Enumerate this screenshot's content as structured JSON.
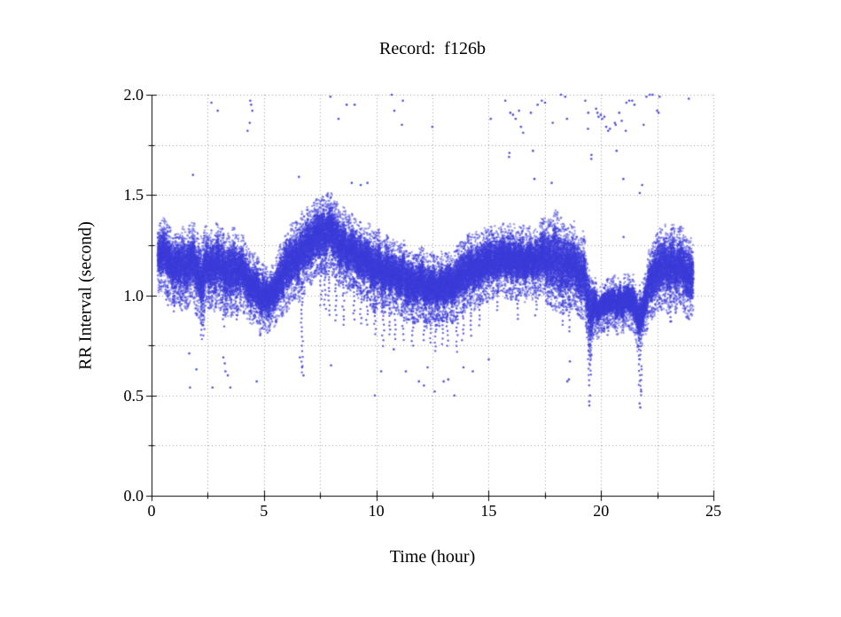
{
  "chart_data": {
    "type": "scatter",
    "title": "Record:  f126b",
    "xlabel": "Time (hour)",
    "ylabel": "RR Interval (second)",
    "xlim": [
      0,
      25
    ],
    "ylim": [
      0,
      2
    ],
    "x_major_ticks": [
      0,
      5,
      10,
      15,
      20,
      25
    ],
    "x_tick_labels": [
      "0",
      "5",
      "10",
      "15",
      "20",
      "25"
    ],
    "x_minor_step": 2.5,
    "y_major_ticks": [
      0,
      0.5,
      1,
      1.5,
      2
    ],
    "y_tick_labels": [
      "0.0",
      "0.5",
      "1.0",
      "1.5",
      "2.0"
    ],
    "y_minor_step": 0.25,
    "grid": "dotted gridlines at every minor tick; top and right frame dotted",
    "legend": "none",
    "point_color": "#3c3cd9",
    "grid_color": "#9e9e9e",
    "axis_color": "#000000",
    "series_name": "RR intervals",
    "t_start": 0.28,
    "t_end": 24.1,
    "points_per_hour": 2200,
    "band_envelope": [
      [
        0.28,
        1.05,
        1.28
      ],
      [
        0.45,
        1.07,
        1.32
      ],
      [
        0.6,
        1.08,
        1.33
      ],
      [
        0.9,
        1.02,
        1.28
      ],
      [
        1.2,
        1.05,
        1.3
      ],
      [
        1.5,
        1.0,
        1.28
      ],
      [
        1.8,
        1.02,
        1.3
      ],
      [
        2.1,
        0.95,
        1.26
      ],
      [
        2.25,
        0.88,
        1.22
      ],
      [
        2.4,
        1.0,
        1.28
      ],
      [
        2.7,
        1.02,
        1.3
      ],
      [
        3.0,
        1.0,
        1.3
      ],
      [
        3.3,
        0.98,
        1.26
      ],
      [
        3.6,
        0.95,
        1.28
      ],
      [
        3.9,
        1.0,
        1.26
      ],
      [
        4.2,
        0.98,
        1.22
      ],
      [
        4.5,
        0.95,
        1.18
      ],
      [
        4.8,
        0.9,
        1.12
      ],
      [
        5.1,
        0.87,
        1.08
      ],
      [
        5.4,
        0.9,
        1.1
      ],
      [
        5.7,
        0.95,
        1.18
      ],
      [
        6.0,
        1.0,
        1.28
      ],
      [
        6.3,
        1.05,
        1.32
      ],
      [
        6.6,
        1.06,
        1.34
      ],
      [
        6.9,
        1.1,
        1.37
      ],
      [
        7.2,
        1.13,
        1.4
      ],
      [
        7.5,
        1.16,
        1.43
      ],
      [
        7.8,
        1.18,
        1.44
      ],
      [
        8.1,
        1.17,
        1.43
      ],
      [
        8.4,
        1.13,
        1.4
      ],
      [
        8.7,
        1.1,
        1.36
      ],
      [
        9.0,
        1.08,
        1.33
      ],
      [
        9.3,
        1.05,
        1.3
      ],
      [
        9.6,
        1.03,
        1.28
      ],
      [
        9.9,
        1.0,
        1.28
      ],
      [
        10.2,
        1.0,
        1.25
      ],
      [
        10.5,
        0.98,
        1.24
      ],
      [
        10.8,
        1.0,
        1.22
      ],
      [
        11.1,
        0.98,
        1.22
      ],
      [
        11.4,
        0.95,
        1.2
      ],
      [
        11.7,
        0.95,
        1.18
      ],
      [
        12.0,
        0.94,
        1.18
      ],
      [
        12.3,
        0.92,
        1.16
      ],
      [
        12.6,
        0.92,
        1.15
      ],
      [
        12.9,
        0.92,
        1.15
      ],
      [
        13.2,
        0.93,
        1.16
      ],
      [
        13.5,
        0.95,
        1.18
      ],
      [
        13.8,
        0.98,
        1.22
      ],
      [
        14.1,
        1.0,
        1.25
      ],
      [
        14.4,
        1.02,
        1.27
      ],
      [
        14.7,
        1.04,
        1.28
      ],
      [
        15.0,
        1.05,
        1.3
      ],
      [
        15.3,
        1.07,
        1.3
      ],
      [
        15.6,
        1.08,
        1.3
      ],
      [
        15.9,
        1.06,
        1.29
      ],
      [
        16.2,
        1.05,
        1.28
      ],
      [
        16.5,
        1.05,
        1.28
      ],
      [
        16.8,
        1.07,
        1.3
      ],
      [
        17.1,
        1.08,
        1.3
      ],
      [
        17.4,
        1.06,
        1.32
      ],
      [
        17.7,
        1.02,
        1.33
      ],
      [
        18.0,
        0.96,
        1.35
      ],
      [
        18.3,
        1.0,
        1.34
      ],
      [
        18.6,
        1.0,
        1.32
      ],
      [
        18.9,
        1.0,
        1.3
      ],
      [
        19.2,
        0.96,
        1.25
      ],
      [
        19.4,
        0.88,
        1.15
      ],
      [
        19.55,
        0.72,
        1.05
      ],
      [
        19.7,
        0.86,
        1.02
      ],
      [
        19.9,
        0.88,
        1.0
      ],
      [
        20.2,
        0.88,
        1.01
      ],
      [
        20.5,
        0.88,
        1.02
      ],
      [
        20.8,
        0.9,
        1.04
      ],
      [
        21.1,
        0.9,
        1.05
      ],
      [
        21.4,
        0.88,
        1.04
      ],
      [
        21.65,
        0.8,
        1.0
      ],
      [
        21.8,
        0.78,
        0.98
      ],
      [
        21.95,
        0.88,
        1.08
      ],
      [
        22.1,
        0.92,
        1.14
      ],
      [
        22.3,
        0.95,
        1.2
      ],
      [
        22.5,
        0.98,
        1.26
      ],
      [
        22.8,
        1.0,
        1.28
      ],
      [
        23.1,
        1.0,
        1.28
      ],
      [
        23.4,
        1.0,
        1.27
      ],
      [
        23.7,
        1.0,
        1.28
      ],
      [
        24.0,
        0.96,
        1.25
      ],
      [
        24.1,
        0.98,
        1.22
      ]
    ],
    "down_streaks": [
      [
        0.7,
        1.05,
        0.95
      ],
      [
        1.0,
        1.05,
        0.92
      ],
      [
        1.35,
        1.02,
        0.93
      ],
      [
        2.22,
        1.05,
        0.78
      ],
      [
        2.32,
        1.02,
        0.8
      ],
      [
        3.2,
        1.0,
        0.85
      ],
      [
        3.8,
        1.0,
        0.88
      ],
      [
        4.6,
        1.0,
        0.88
      ],
      [
        5.3,
        1.0,
        0.88
      ],
      [
        6.7,
        1.06,
        0.62
      ],
      [
        7.55,
        1.16,
        0.95
      ],
      [
        7.72,
        1.14,
        0.93
      ],
      [
        7.9,
        1.12,
        0.9
      ],
      [
        8.2,
        1.1,
        0.88
      ],
      [
        8.55,
        1.08,
        0.85
      ],
      [
        9.0,
        1.08,
        0.88
      ],
      [
        9.3,
        1.05,
        0.86
      ],
      [
        9.6,
        1.02,
        0.85
      ],
      [
        9.95,
        0.99,
        0.8
      ],
      [
        10.3,
        0.97,
        0.75
      ],
      [
        10.6,
        0.96,
        0.8
      ],
      [
        10.85,
        0.97,
        0.78
      ],
      [
        11.2,
        0.94,
        0.78
      ],
      [
        11.6,
        0.93,
        0.75
      ],
      [
        12.1,
        0.92,
        0.78
      ],
      [
        12.4,
        0.9,
        0.76
      ],
      [
        12.65,
        0.9,
        0.72
      ],
      [
        12.95,
        0.9,
        0.76
      ],
      [
        13.15,
        0.91,
        0.75
      ],
      [
        13.6,
        0.93,
        0.72
      ],
      [
        13.85,
        0.95,
        0.78
      ],
      [
        14.2,
        0.98,
        0.8
      ],
      [
        14.6,
        1.0,
        0.85
      ],
      [
        15.4,
        1.05,
        0.92
      ],
      [
        16.3,
        1.03,
        0.88
      ],
      [
        17.1,
        1.06,
        0.9
      ],
      [
        18.3,
        1.0,
        0.85
      ],
      [
        18.6,
        0.99,
        0.82
      ],
      [
        19.45,
        1.08,
        0.55
      ],
      [
        19.55,
        1.02,
        0.6
      ],
      [
        20.3,
        0.89,
        0.8
      ],
      [
        21.68,
        0.93,
        0.55
      ],
      [
        21.78,
        0.9,
        0.5
      ],
      [
        23.1,
        1.0,
        0.87
      ]
    ],
    "outliers_high": [
      [
        1.85,
        1.6
      ],
      [
        2.68,
        1.96
      ],
      [
        2.95,
        1.92
      ],
      [
        4.29,
        1.82
      ],
      [
        4.37,
        1.86
      ],
      [
        4.4,
        1.97
      ],
      [
        4.45,
        1.95
      ],
      [
        4.5,
        1.92
      ],
      [
        6.57,
        1.59
      ],
      [
        7.95,
        1.99
      ],
      [
        8.3,
        1.88
      ],
      [
        8.7,
        1.95
      ],
      [
        8.9,
        1.56
      ],
      [
        9.05,
        1.95
      ],
      [
        9.3,
        1.55
      ],
      [
        9.6,
        1.56
      ],
      [
        10.7,
        2.0
      ],
      [
        10.8,
        1.92
      ],
      [
        11.15,
        1.85
      ],
      [
        11.2,
        1.97
      ],
      [
        12.5,
        1.84
      ],
      [
        15.1,
        1.88
      ],
      [
        15.75,
        1.97
      ],
      [
        15.9,
        1.69
      ],
      [
        15.92,
        1.71
      ],
      [
        15.95,
        1.91
      ],
      [
        16.1,
        1.9
      ],
      [
        16.2,
        1.88
      ],
      [
        16.35,
        1.92
      ],
      [
        16.45,
        1.84
      ],
      [
        16.55,
        1.81
      ],
      [
        16.9,
        1.91
      ],
      [
        16.95,
        1.72
      ],
      [
        17.05,
        1.58
      ],
      [
        17.2,
        1.95
      ],
      [
        17.35,
        1.97
      ],
      [
        17.5,
        1.96
      ],
      [
        17.8,
        1.56
      ],
      [
        17.85,
        1.86
      ],
      [
        18.2,
        2.0
      ],
      [
        18.4,
        1.99
      ],
      [
        18.5,
        1.88
      ],
      [
        19.3,
        1.97
      ],
      [
        19.4,
        1.83
      ],
      [
        19.45,
        1.91
      ],
      [
        19.55,
        1.68
      ],
      [
        19.57,
        1.7
      ],
      [
        19.76,
        1.93
      ],
      [
        19.82,
        1.91
      ],
      [
        19.9,
        1.89
      ],
      [
        19.97,
        1.9
      ],
      [
        20.05,
        1.88
      ],
      [
        20.15,
        1.89
      ],
      [
        20.22,
        1.84
      ],
      [
        20.3,
        1.82
      ],
      [
        20.38,
        1.83
      ],
      [
        20.6,
        1.86
      ],
      [
        20.66,
        1.85
      ],
      [
        20.7,
        1.72
      ],
      [
        20.8,
        1.91
      ],
      [
        20.9,
        1.87
      ],
      [
        21.0,
        1.58
      ],
      [
        21.02,
        1.29
      ],
      [
        21.1,
        1.82
      ],
      [
        21.15,
        1.96
      ],
      [
        21.27,
        1.97
      ],
      [
        21.4,
        1.97
      ],
      [
        21.5,
        1.95
      ],
      [
        21.7,
        1.51
      ],
      [
        21.85,
        1.55
      ],
      [
        21.9,
        1.85
      ],
      [
        22.0,
        1.99
      ],
      [
        22.15,
        2.0
      ],
      [
        22.3,
        2.0
      ],
      [
        22.5,
        1.92
      ],
      [
        22.55,
        1.91
      ],
      [
        22.62,
        1.99
      ],
      [
        23.9,
        1.98
      ]
    ],
    "outliers_low": [
      [
        1.7,
        0.71
      ],
      [
        1.72,
        0.54
      ],
      [
        2.0,
        0.63
      ],
      [
        2.7,
        0.54
      ],
      [
        3.2,
        0.69
      ],
      [
        3.25,
        0.66
      ],
      [
        3.3,
        0.62
      ],
      [
        3.4,
        0.6
      ],
      [
        3.5,
        0.54
      ],
      [
        4.7,
        0.57
      ],
      [
        6.6,
        0.69
      ],
      [
        6.68,
        0.64
      ],
      [
        6.75,
        0.6
      ],
      [
        8.0,
        0.65
      ],
      [
        9.95,
        0.5
      ],
      [
        10.2,
        0.62
      ],
      [
        10.8,
        0.73
      ],
      [
        11.3,
        0.62
      ],
      [
        11.9,
        0.57
      ],
      [
        12.1,
        0.55
      ],
      [
        12.3,
        0.64
      ],
      [
        12.6,
        0.52
      ],
      [
        13.0,
        0.57
      ],
      [
        13.2,
        0.58
      ],
      [
        13.5,
        0.5
      ],
      [
        13.9,
        0.64
      ],
      [
        14.3,
        0.62
      ],
      [
        15.0,
        0.68
      ],
      [
        18.5,
        0.57
      ],
      [
        18.56,
        0.58
      ],
      [
        18.62,
        0.67
      ],
      [
        19.48,
        0.47
      ],
      [
        19.5,
        0.45
      ],
      [
        19.53,
        0.5
      ],
      [
        21.7,
        0.46
      ],
      [
        21.73,
        0.44
      ],
      [
        21.77,
        0.52
      ],
      [
        23.1,
        0.87
      ]
    ]
  }
}
